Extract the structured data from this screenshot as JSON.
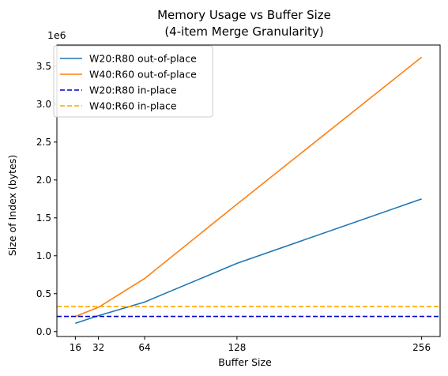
{
  "chart_data": {
    "type": "line",
    "title_lines": [
      "Memory Usage vs Buffer Size",
      "(4-item Merge Granularity)"
    ],
    "xlabel": "Buffer Size",
    "ylabel": "Size of Index (bytes)",
    "y_offset_label": "1e6",
    "xlim": [
      3.2,
      268.8
    ],
    "ylim": [
      -0.065,
      3.78
    ],
    "x_ticks": [
      16,
      32,
      64,
      128,
      256
    ],
    "y_ticks": [
      0.0,
      0.5,
      1.0,
      1.5,
      2.0,
      2.5,
      3.0,
      3.5
    ],
    "y_tick_labels": [
      "0.0",
      "0.5",
      "1.0",
      "1.5",
      "2.0",
      "2.5",
      "3.0",
      "3.5"
    ],
    "legend_position": "upper-left",
    "series": [
      {
        "name": "W20:R80 out-of-place",
        "style": "solid",
        "color": "#1f77b4",
        "x": [
          16,
          32,
          64,
          128,
          256
        ],
        "y": [
          0.11,
          0.21,
          0.39,
          0.9,
          1.75
        ]
      },
      {
        "name": "W40:R60 out-of-place",
        "style": "solid",
        "color": "#ff7f0e",
        "x": [
          16,
          32,
          64,
          128,
          256
        ],
        "y": [
          0.2,
          0.32,
          0.7,
          1.68,
          3.62
        ]
      },
      {
        "name": "W20:R80 in-place",
        "style": "dashed",
        "color": "#0000cc",
        "x": [
          3.2,
          268.8
        ],
        "y": [
          0.2,
          0.2
        ]
      },
      {
        "name": "W40:R60 in-place",
        "style": "dashed",
        "color": "#ffa500",
        "x": [
          3.2,
          268.8
        ],
        "y": [
          0.33,
          0.33
        ]
      }
    ]
  }
}
